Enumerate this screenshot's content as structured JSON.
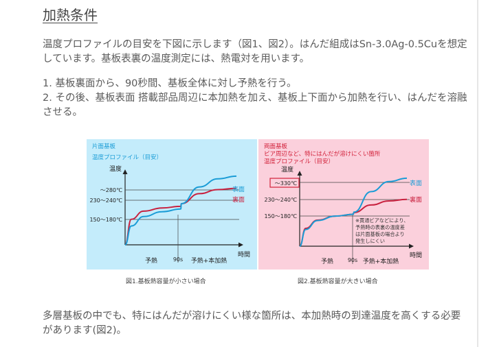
{
  "section": {
    "heading": "加熱条件",
    "intro": "温度プロファイルの目安を下図に示します（図1、図2）。はんだ組成はSn-3.0Ag-0.5Cuを想定しています。基板表裏の温度測定には、熱電対を用います。",
    "steps": [
      "1. 基板裏面から、90秒間、基板全体に対し予熱を行う。",
      "2. その後、基板表面 搭載部品周辺に本加熱を加え、基板上下面から加熱を行い、はんだを溶融させる。"
    ],
    "closing": "多層基板の中でも、特にはんだが溶けにくい様な箇所は、本加熱時の到達温度を高くする必要があります(図2)。"
  },
  "colors": {
    "fig1_background": "#c4ecfb",
    "fig2_background": "#fbd0dc",
    "title_blue": "#1a9cd6",
    "title_red": "#d2213a",
    "surface_curve": "#1a9cd6",
    "back_curve": "#c8203e"
  },
  "chart_data": [
    {
      "type": "line",
      "title_lines": [
        "片面基板",
        "温度プロファイル（目安）"
      ],
      "ylabel": "温度",
      "xlabel": "時間",
      "y_tick_labels": [
        "～280℃",
        "230～240℃",
        "150～180℃"
      ],
      "x_tick_labels": [
        "90s"
      ],
      "phase_labels": [
        "予熱",
        "予熱+本加熱"
      ],
      "series": [
        {
          "name": "表面",
          "x": [
            0,
            10,
            30,
            60,
            90,
            91,
            120,
            150,
            180
          ],
          "y": [
            25,
            95,
            130,
            148,
            158,
            178,
            240,
            270,
            280
          ]
        },
        {
          "name": "裏面",
          "x": [
            0,
            10,
            30,
            60,
            90,
            91,
            120,
            150,
            180
          ],
          "y": [
            25,
            120,
            150,
            162,
            168,
            178,
            215,
            230,
            235
          ]
        }
      ],
      "caption": "図1.基板熱容量が小さい場合"
    },
    {
      "type": "line",
      "title_lines": [
        "両面基板",
        "ビア周辺など、特にはんだが溶けにくい箇所",
        "温度プロファイル（目安）"
      ],
      "ylabel": "温度",
      "xlabel": "時間",
      "y_tick_labels": [
        "～330℃",
        "230～240℃",
        "150～180℃"
      ],
      "x_tick_labels": [
        "90s"
      ],
      "phase_labels": [
        "予熱",
        "予熱+本加熱"
      ],
      "annotation": [
        "※貫通ビアなどにより、",
        "予熱時の表裏の温度差",
        "は片面基板の場合より",
        "発生しにくい"
      ],
      "series": [
        {
          "name": "表面",
          "x": [
            0,
            10,
            30,
            60,
            90,
            91,
            120,
            150,
            180
          ],
          "y": [
            25,
            100,
            140,
            160,
            168,
            178,
            270,
            315,
            330
          ]
        },
        {
          "name": "裏面",
          "x": [
            0,
            10,
            30,
            60,
            90,
            91,
            120,
            150,
            180
          ],
          "y": [
            25,
            105,
            142,
            160,
            168,
            176,
            210,
            228,
            235
          ]
        }
      ],
      "caption": "図2.基板熱容量が大きい場合"
    }
  ]
}
